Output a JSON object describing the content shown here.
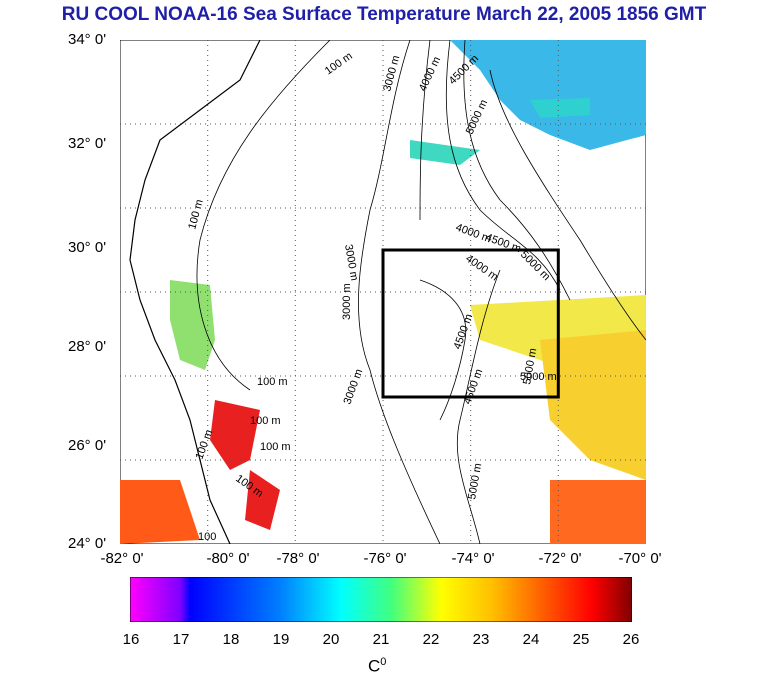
{
  "title": "RU COOL  NOAA-16 Sea Surface Temperature March 22, 2005 1856 GMT",
  "lat_labels": [
    "34° 0'",
    "32° 0'",
    "30° 0'",
    "28° 0'",
    "26° 0'",
    "24° 0'"
  ],
  "lon_labels": [
    "-82° 0'",
    "-80° 0'",
    "-78° 0'",
    "-76° 0'",
    "-74° 0'",
    "-72° 0'",
    "-70° 0'"
  ],
  "contour_labels": [
    "100 m",
    "3000 m",
    "4000 m",
    "4500 m",
    "5000 m",
    "100 m",
    "3000 m",
    "4000 m",
    "4500 m",
    "5000 m",
    "4000 m",
    "3000 m",
    "4500 m",
    "5000 m",
    "5000 m",
    "100 m",
    "100 m",
    "100 m",
    "100 m",
    "3000 m",
    "4500 m",
    "5000 m",
    "100 m",
    "100"
  ],
  "colorbar": {
    "ticks": [
      "16",
      "17",
      "18",
      "19",
      "20",
      "21",
      "22",
      "23",
      "24",
      "25",
      "26"
    ],
    "unit": "C",
    "unit_sup": "0",
    "colors": [
      "#ff00ff",
      "#8000ff",
      "#0000ff",
      "#0080ff",
      "#00ffff",
      "#40ff80",
      "#ffff00",
      "#ffc000",
      "#ff6000",
      "#ff0000",
      "#800000"
    ]
  },
  "box_region": {
    "lon": [
      -76,
      -72
    ],
    "lat": [
      27,
      30
    ]
  }
}
